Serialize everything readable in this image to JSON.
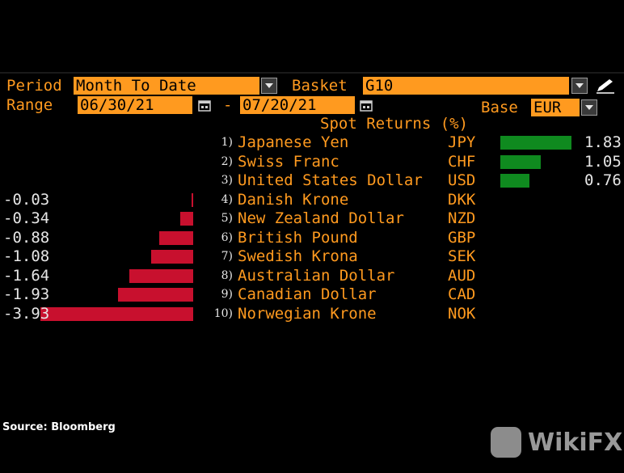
{
  "controls": {
    "period_label": "Period",
    "period_value": "Month To Date",
    "basket_label": "Basket",
    "basket_value": "G10",
    "range_label": "Range",
    "range_start": "06/30/21",
    "range_sep": "-",
    "range_end": "07/20/21",
    "base_label": "Base",
    "base_value": "EUR"
  },
  "colors": {
    "accent": "#ff9a1f",
    "positive": "#0f8a1f",
    "negative": "#c8102e"
  },
  "source": "Source: Bloomberg",
  "watermark": "WikiFX",
  "chart_data": {
    "type": "bar",
    "orientation": "horizontal",
    "title": "Spot Returns (%)",
    "ranks": [
      "1)",
      "2)",
      "3)",
      "4)",
      "5)",
      "6)",
      "7)",
      "8)",
      "9)",
      "10)"
    ],
    "categories": [
      "Japanese Yen",
      "Swiss Franc",
      "United States Dollar",
      "Danish Krone",
      "New Zealand Dollar",
      "British Pound",
      "Swedish Krona",
      "Australian Dollar",
      "Canadian Dollar",
      "Norwegian Krone"
    ],
    "codes": [
      "JPY",
      "CHF",
      "USD",
      "DKK",
      "NZD",
      "GBP",
      "SEK",
      "AUD",
      "CAD",
      "NOK"
    ],
    "values": [
      1.83,
      1.05,
      0.76,
      -0.03,
      -0.34,
      -0.88,
      -1.08,
      -1.64,
      -1.93,
      -3.93
    ],
    "value_labels": [
      "1.83",
      "1.05",
      "0.76",
      "-0.03",
      "-0.34",
      "-0.88",
      "-1.08",
      "-1.64",
      "-1.93",
      "-3.93"
    ]
  }
}
